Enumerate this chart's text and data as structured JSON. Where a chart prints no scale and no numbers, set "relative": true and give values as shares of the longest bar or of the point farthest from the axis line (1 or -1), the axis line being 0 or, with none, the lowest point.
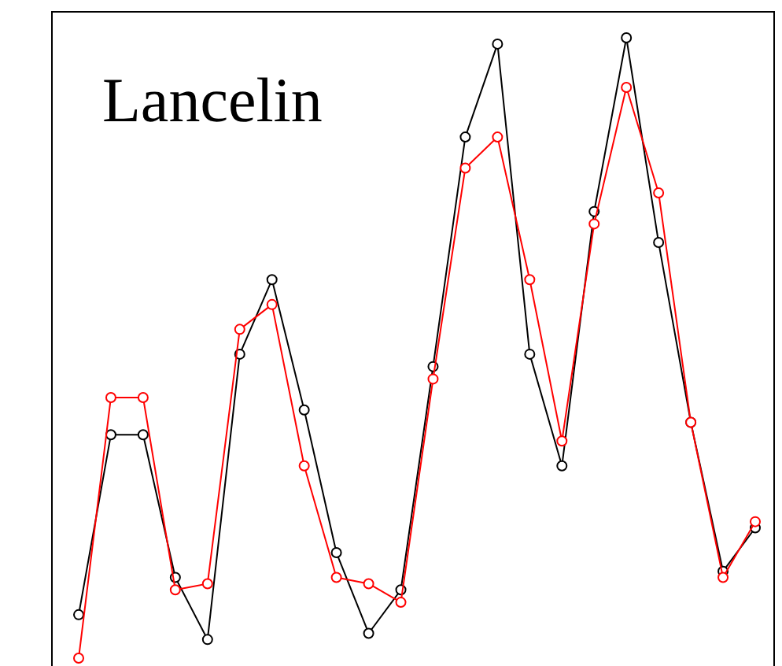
{
  "chart_data": {
    "type": "line",
    "title": "Lancelin",
    "relative": true,
    "categories": [
      null,
      null,
      null,
      null,
      null,
      null,
      null,
      null,
      null,
      null,
      null,
      null,
      null,
      null,
      null,
      null,
      null,
      null,
      null,
      null,
      null,
      null
    ],
    "series": [
      {
        "color": "#000000",
        "values": [
          0.07,
          0.36,
          0.36,
          0.13,
          0.03,
          0.49,
          0.61,
          0.4,
          0.17,
          0.04,
          0.11,
          0.47,
          0.84,
          0.99,
          0.49,
          0.31,
          0.72,
          1,
          0.67,
          0.38,
          0.14,
          0.21
        ]
      },
      {
        "color": "#ff0000",
        "values": [
          0,
          0.42,
          0.42,
          0.11,
          0.12,
          0.53,
          0.57,
          0.31,
          0.13,
          0.12,
          0.09,
          0.45,
          0.79,
          0.84,
          0.61,
          0.35,
          0.7,
          0.92,
          0.75,
          0.38,
          0.13,
          0.22
        ]
      }
    ],
    "marker": "circle",
    "line_style": "solid",
    "grid": false,
    "legend": false
  }
}
